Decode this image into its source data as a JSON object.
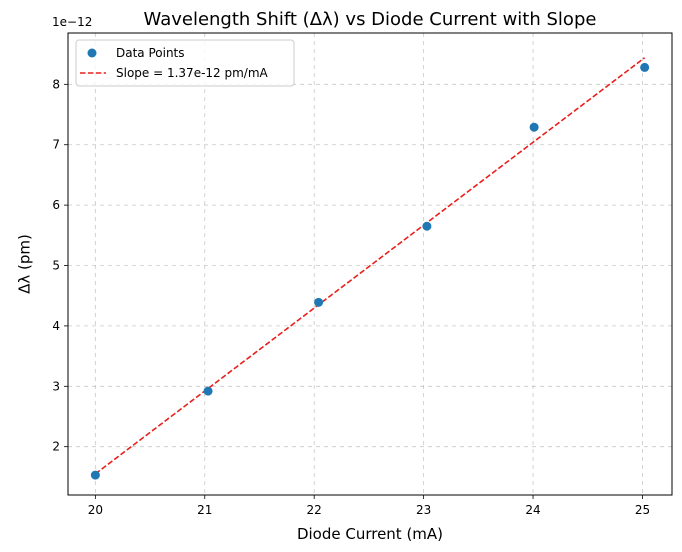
{
  "chart_data": {
    "type": "scatter",
    "title": "Wavelength Shift (Δλ) vs Diode Current with Slope",
    "xlabel": "Diode Current (mA)",
    "ylabel": "Δλ (pm)",
    "y_offset_label": "1e−12",
    "xlim": [
      19.75,
      25.27
    ],
    "ylim": [
      1.2,
      8.85
    ],
    "x_ticks": [
      20,
      21,
      22,
      23,
      24,
      25
    ],
    "y_ticks": [
      2,
      3,
      4,
      5,
      6,
      7,
      8
    ],
    "grid": true,
    "legend_position": "top-left",
    "series": [
      {
        "name": "Data Points",
        "kind": "points",
        "color": "#1f77b4",
        "x": [
          20.0,
          21.03,
          22.04,
          23.03,
          24.01,
          25.02
        ],
        "y": [
          1.53,
          2.92,
          4.39,
          5.65,
          7.29,
          8.28
        ]
      },
      {
        "name": "Slope = 1.37e-12 pm/mA",
        "kind": "line",
        "style": "dashed",
        "color": "#e8201c",
        "x": [
          20.0,
          25.02
        ],
        "y": [
          1.55,
          8.44
        ]
      }
    ]
  }
}
